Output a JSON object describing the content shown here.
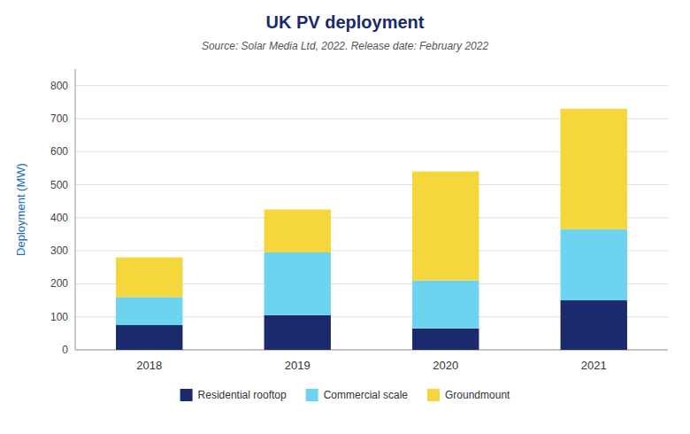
{
  "chart_data": {
    "type": "bar",
    "stacked": true,
    "title": "UK PV deployment",
    "subtitle": "Source: Solar Media Ltd, 2022. Release date: February 2022",
    "ylabel": "Deployment (MW)",
    "categories": [
      "2018",
      "2019",
      "2020",
      "2021"
    ],
    "series": [
      {
        "name": "Residential rooftop",
        "color": "#1a2a6c",
        "values": [
          75,
          105,
          65,
          150
        ]
      },
      {
        "name": "Commercial scale",
        "color": "#6dd4f0",
        "values": [
          85,
          190,
          145,
          215
        ]
      },
      {
        "name": "Groundmount",
        "color": "#f5d63d",
        "values": [
          120,
          130,
          330,
          365
        ]
      }
    ],
    "ylim": [
      0,
      850
    ],
    "yticks": [
      0,
      100,
      200,
      300,
      400,
      500,
      600,
      700,
      800
    ],
    "grid": true,
    "legend": "bottom"
  }
}
